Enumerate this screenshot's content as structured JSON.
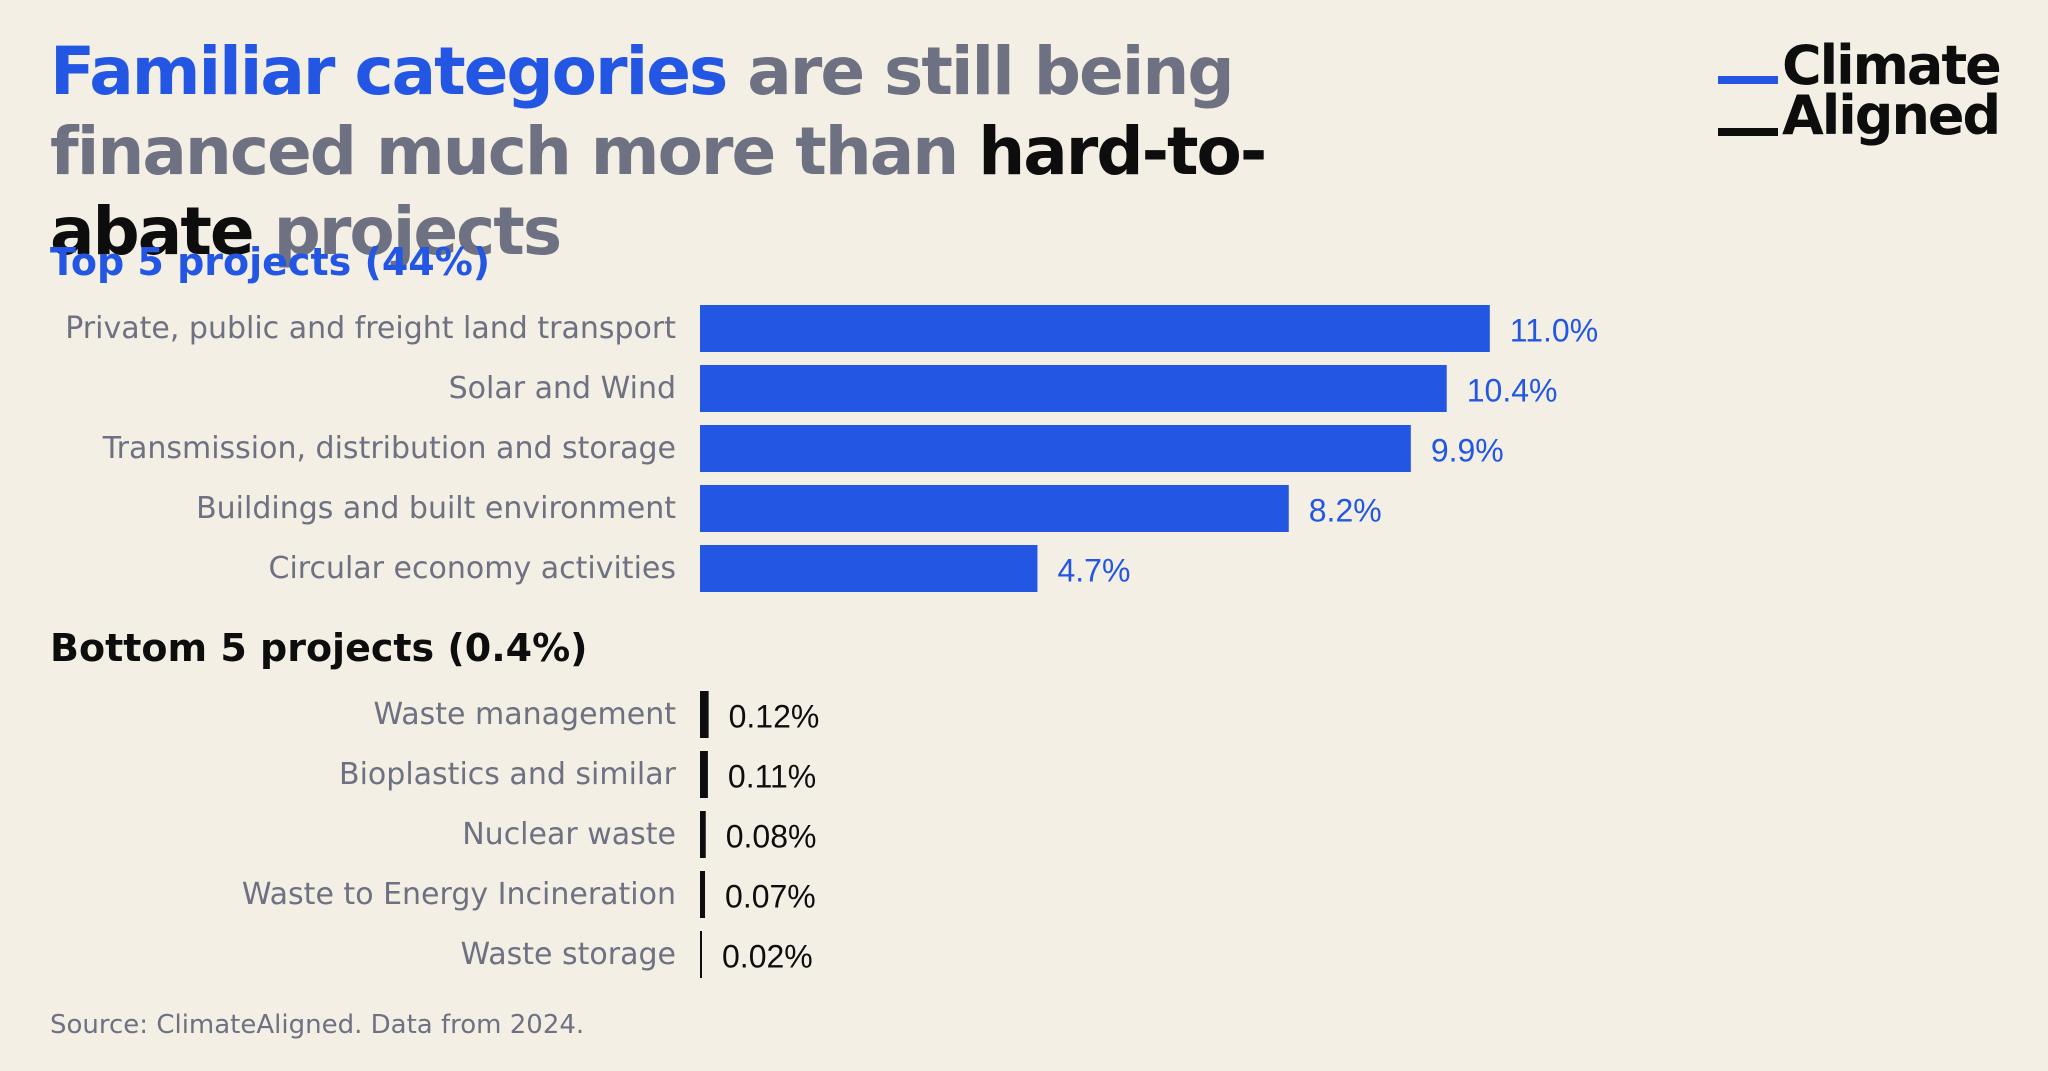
{
  "title": {
    "part1": "Familiar categories",
    "part2": " are still being financed much more than ",
    "part3": "hard-to-abate",
    "part4": " projects"
  },
  "logo": {
    "line1": "Climate",
    "line2": "Aligned"
  },
  "colors": {
    "accent": "#2357e3",
    "dark": "#0d0d0d",
    "muted": "#6d7182",
    "background": "#f4efe4"
  },
  "source": "Source: ClimateAligned. Data from 2024.",
  "chart_data": [
    {
      "type": "bar",
      "orientation": "horizontal",
      "title": "Top 5 projects (44%)",
      "categories": [
        "Private, public and freight land transport",
        "Solar and Wind",
        "Transmission, distribution and storage",
        "Buildings and built environment",
        "Circular economy activities"
      ],
      "values": [
        11.0,
        10.4,
        9.9,
        8.2,
        4.7
      ],
      "value_labels": [
        "11.0%",
        "10.4%",
        "9.9%",
        "8.2%",
        "4.7%"
      ],
      "unit": "%",
      "color": "#2357e3",
      "grid": false
    },
    {
      "type": "bar",
      "orientation": "horizontal",
      "title": "Bottom 5 projects (0.4%)",
      "categories": [
        "Waste management",
        "Bioplastics and similar",
        "Nuclear waste",
        "Waste to Energy Incineration",
        "Waste storage"
      ],
      "values": [
        0.12,
        0.11,
        0.08,
        0.07,
        0.02
      ],
      "value_labels": [
        "0.12%",
        "0.11%",
        "0.08%",
        "0.07%",
        "0.02%"
      ],
      "unit": "%",
      "color": "#0d0d0d",
      "grid": false
    }
  ]
}
